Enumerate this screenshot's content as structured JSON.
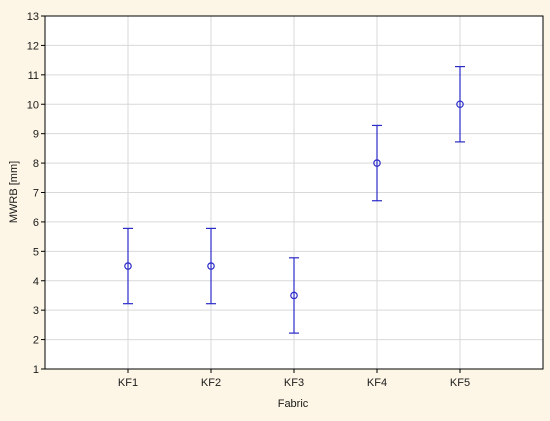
{
  "chart_data": {
    "type": "scatter",
    "subtype": "error-bar",
    "title": "",
    "xlabel": "Fabric",
    "ylabel": "MWRB  [mm]",
    "categories": [
      "KF1",
      "KF2",
      "KF3",
      "KF4",
      "KF5"
    ],
    "series": [
      {
        "values": [
          4.5,
          4.5,
          3.5,
          8.0,
          10.0
        ],
        "lower": [
          3.22,
          3.22,
          2.22,
          6.72,
          8.72
        ],
        "upper": [
          5.78,
          5.78,
          4.78,
          9.28,
          11.28
        ]
      }
    ],
    "ylim": [
      1,
      13
    ],
    "yticks": [
      1,
      2,
      3,
      4,
      5,
      6,
      7,
      8,
      9,
      10,
      11,
      12,
      13
    ],
    "grid": true,
    "marker": "circle",
    "colors": {
      "series": "#2b2bc8",
      "grid": "#d9d9d9",
      "plot_background": "#ffffff",
      "page_background": "#fdf6e6",
      "axis": "#000000"
    }
  }
}
